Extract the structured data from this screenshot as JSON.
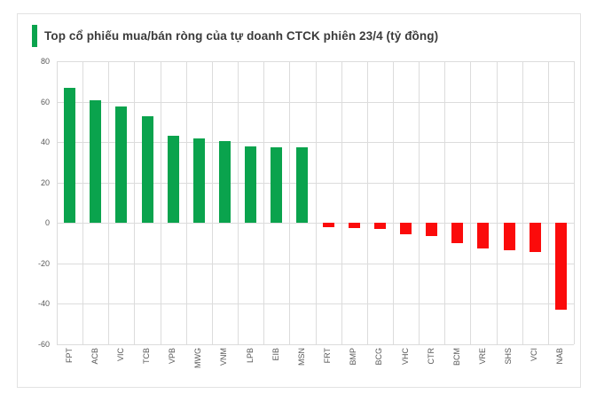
{
  "header": {
    "title": "Top cổ phiếu mua/bán ròng của tự doanh CTCK phiên 23/4 (tỷ đồng)"
  },
  "colors": {
    "positive": "#0aa34d",
    "negative": "#fb0b0b",
    "accent_bar": "#0aa34d",
    "grid": "#dcdcdc",
    "axis_text": "#595959",
    "title_text": "#3b3b3b",
    "card_border": "#e2e2e2"
  },
  "chart_data": {
    "type": "bar",
    "title": "Top cổ phiếu mua/bán ròng của tự doanh CTCK phiên 23/4 (tỷ đồng)",
    "unit": "tỷ đồng",
    "categories": [
      "FPT",
      "ACB",
      "VIC",
      "TCB",
      "VPB",
      "MWG",
      "VNM",
      "LPB",
      "EIB",
      "MSN",
      "FRT",
      "BMP",
      "BCG",
      "VHC",
      "CTR",
      "BCM",
      "VRE",
      "SHS",
      "VCI",
      "NAB"
    ],
    "values": [
      67,
      60.5,
      57.5,
      53,
      43,
      42,
      40.5,
      38,
      37.5,
      37.5,
      -2,
      -2.5,
      -3,
      -5.5,
      -6.5,
      -10,
      -12.5,
      -13.5,
      -14.5,
      -43
    ],
    "xlabel": "",
    "ylabel": "",
    "ylim": [
      -60,
      80
    ],
    "ytick_step": 20,
    "yticks": [
      "80",
      "60",
      "40",
      "20",
      "0",
      "-20",
      "-40",
      "-60"
    ],
    "grid": true,
    "legend": "none",
    "positive_color": "#0aa34d",
    "negative_color": "#fb0b0b"
  }
}
